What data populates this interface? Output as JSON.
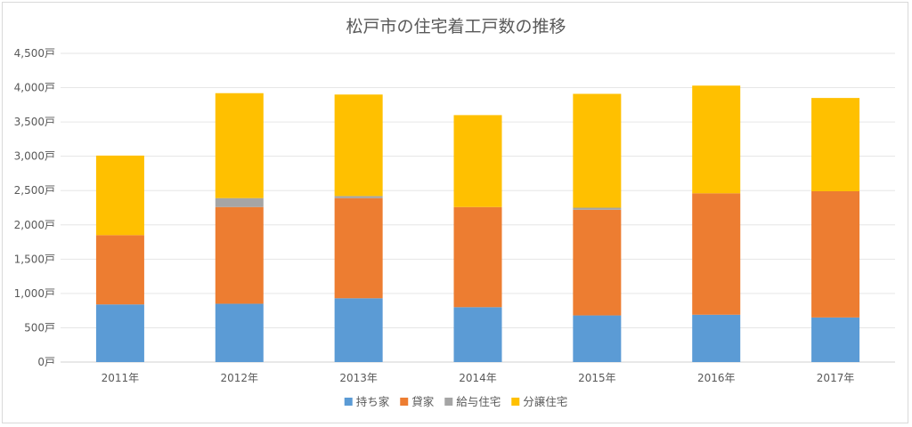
{
  "chart_data": {
    "type": "bar",
    "stacked": true,
    "title": "松戸市の住宅着工戸数の推移",
    "categories": [
      "2011年",
      "2012年",
      "2013年",
      "2014年",
      "2015年",
      "2016年",
      "2017年"
    ],
    "series": [
      {
        "name": "持ち家",
        "color": "#5b9bd5",
        "values": [
          840,
          850,
          930,
          800,
          680,
          690,
          650
        ]
      },
      {
        "name": "貸家",
        "color": "#ed7d31",
        "values": [
          1010,
          1410,
          1460,
          1460,
          1540,
          1770,
          1840
        ]
      },
      {
        "name": "給与住宅",
        "color": "#a5a5a5",
        "values": [
          0,
          130,
          30,
          0,
          30,
          0,
          0
        ]
      },
      {
        "name": "分譲住宅",
        "color": "#ffc000",
        "values": [
          1160,
          1530,
          1480,
          1340,
          1660,
          1570,
          1360
        ]
      }
    ],
    "ylim": [
      0,
      4500
    ],
    "yticks": [
      0,
      500,
      1000,
      1500,
      2000,
      2500,
      3000,
      3500,
      4000,
      4500
    ],
    "ytick_labels": [
      "0戸",
      "500戸",
      "1,000戸",
      "1,500戸",
      "2,000戸",
      "2,500戸",
      "3,000戸",
      "3,500戸",
      "4,000戸",
      "4,500戸"
    ],
    "grid": true,
    "legend_position": "bottom"
  }
}
